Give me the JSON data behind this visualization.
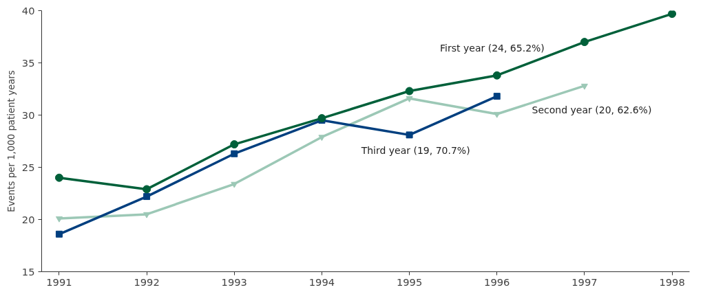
{
  "chart_data": {
    "type": "line",
    "ylabel": "Events per 1,000 patient years",
    "x": [
      1991,
      1992,
      1993,
      1994,
      1995,
      1996,
      1997,
      1998
    ],
    "xlim": [
      1990.8,
      1998.2
    ],
    "xticks": [
      1991,
      1992,
      1993,
      1994,
      1995,
      1996,
      1997,
      1998
    ],
    "ylim": [
      15,
      40
    ],
    "yticks": [
      15,
      20,
      25,
      30,
      35,
      40
    ],
    "grid": false,
    "series": [
      {
        "name": "First year (24, 65.2%)",
        "color": "#00603a",
        "marker": "circle",
        "values": [
          24.0,
          22.9,
          27.2,
          29.7,
          32.3,
          33.8,
          37.0,
          39.7
        ]
      },
      {
        "name": "Second year (20, 62.6%)",
        "color": "#9cc8b6",
        "marker": "triangle",
        "values": [
          20.1,
          20.5,
          23.4,
          27.9,
          31.6,
          30.1,
          32.8,
          null
        ]
      },
      {
        "name": "Third year (19, 70.7%)",
        "color": "#003f7f",
        "marker": "square",
        "values": [
          18.6,
          22.2,
          26.3,
          29.5,
          28.1,
          31.8,
          null,
          null
        ]
      }
    ]
  }
}
